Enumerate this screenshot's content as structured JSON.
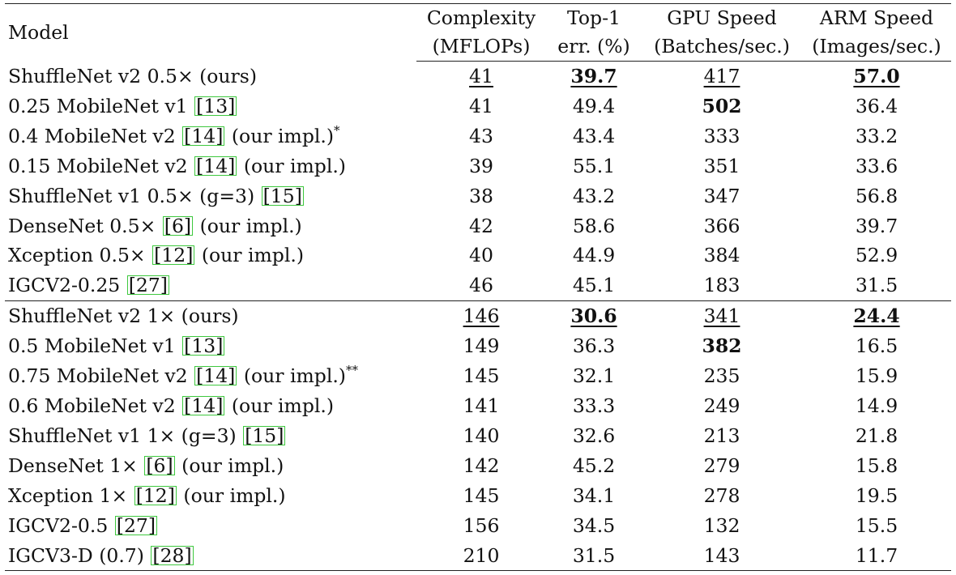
{
  "header": {
    "model": "Model",
    "complexity": [
      "Complexity",
      "(MFLOPs)"
    ],
    "top1": [
      "Top-1",
      "err. (%)"
    ],
    "gpu": [
      "GPU Speed",
      "(Batches/sec.)"
    ],
    "arm": [
      "ARM Speed",
      "(Images/sec.)"
    ]
  },
  "groups": [
    [
      {
        "name": "ShuffleNet v2 0.5× (ours)",
        "cite": "",
        "suffix": "",
        "sup": "",
        "cx": "41",
        "top1": "39.7",
        "gpu": "417",
        "arm": "57.0",
        "style": {
          "cx": "u",
          "top1": "ub",
          "gpu": "u",
          "arm": "ub"
        }
      },
      {
        "name": "0.25 MobileNet v1",
        "cite": "13",
        "suffix": "",
        "sup": "",
        "cx": "41",
        "top1": "49.4",
        "gpu": "502",
        "arm": "36.4",
        "style": {
          "gpu": "b"
        }
      },
      {
        "name": "0.4 MobileNet v2",
        "cite": "14",
        "suffix": "(our impl.)",
        "sup": "*",
        "cx": "43",
        "top1": "43.4",
        "gpu": "333",
        "arm": "33.2",
        "style": {}
      },
      {
        "name": "0.15 MobileNet v2",
        "cite": "14",
        "suffix": "(our impl.)",
        "sup": "",
        "cx": "39",
        "top1": "55.1",
        "gpu": "351",
        "arm": "33.6",
        "style": {}
      },
      {
        "name": "ShuffleNet v1 0.5× (g=3)",
        "cite": "15",
        "suffix": "",
        "sup": "",
        "cx": "38",
        "top1": "43.2",
        "gpu": "347",
        "arm": "56.8",
        "style": {}
      },
      {
        "name": "DenseNet 0.5×",
        "cite": "6",
        "suffix": "(our impl.)",
        "sup": "",
        "cx": "42",
        "top1": "58.6",
        "gpu": "366",
        "arm": "39.7",
        "style": {}
      },
      {
        "name": "Xception 0.5×",
        "cite": "12",
        "suffix": "(our impl.)",
        "sup": "",
        "cx": "40",
        "top1": "44.9",
        "gpu": "384",
        "arm": "52.9",
        "style": {}
      },
      {
        "name": "IGCV2-0.25",
        "cite": "27",
        "suffix": "",
        "sup": "",
        "cx": "46",
        "top1": "45.1",
        "gpu": "183",
        "arm": "31.5",
        "style": {}
      }
    ],
    [
      {
        "name": "ShuffleNet v2 1× (ours)",
        "cite": "",
        "suffix": "",
        "sup": "",
        "cx": "146",
        "top1": "30.6",
        "gpu": "341",
        "arm": "24.4",
        "style": {
          "cx": "u",
          "top1": "ub",
          "gpu": "u",
          "arm": "ub"
        }
      },
      {
        "name": "0.5 MobileNet v1",
        "cite": "13",
        "suffix": "",
        "sup": "",
        "cx": "149",
        "top1": "36.3",
        "gpu": "382",
        "arm": "16.5",
        "style": {
          "gpu": "b"
        }
      },
      {
        "name": "0.75 MobileNet v2",
        "cite": "14",
        "suffix": "(our impl.)",
        "sup": "**",
        "cx": "145",
        "top1": "32.1",
        "gpu": "235",
        "arm": "15.9",
        "style": {}
      },
      {
        "name": "0.6 MobileNet v2",
        "cite": "14",
        "suffix": "(our impl.)",
        "sup": "",
        "cx": "141",
        "top1": "33.3",
        "gpu": "249",
        "arm": "14.9",
        "style": {}
      },
      {
        "name": "ShuffleNet v1 1× (g=3)",
        "cite": "15",
        "suffix": "",
        "sup": "",
        "cx": "140",
        "top1": "32.6",
        "gpu": "213",
        "arm": "21.8",
        "style": {}
      },
      {
        "name": "DenseNet 1×",
        "cite": "6",
        "suffix": "(our impl.)",
        "sup": "",
        "cx": "142",
        "top1": "45.2",
        "gpu": "279",
        "arm": "15.8",
        "style": {}
      },
      {
        "name": "Xception 1×",
        "cite": "12",
        "suffix": "(our impl.)",
        "sup": "",
        "cx": "145",
        "top1": "34.1",
        "gpu": "278",
        "arm": "19.5",
        "style": {}
      },
      {
        "name": "IGCV2-0.5",
        "cite": "27",
        "suffix": "",
        "sup": "",
        "cx": "156",
        "top1": "34.5",
        "gpu": "132",
        "arm": "15.5",
        "style": {}
      },
      {
        "name": "IGCV3-D (0.7)",
        "cite": "28",
        "suffix": "",
        "sup": "",
        "cx": "210",
        "top1": "31.5",
        "gpu": "143",
        "arm": "11.7",
        "style": {}
      }
    ]
  ]
}
